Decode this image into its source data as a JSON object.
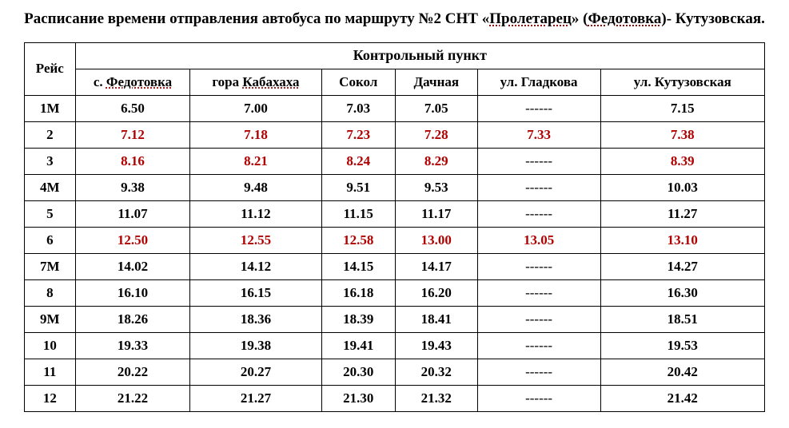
{
  "title_parts": {
    "prefix": "Расписание времени отправления автобуса по маршруту №2 СНТ «",
    "dotted1": "Пролетарец",
    "mid": "» (",
    "dotted2": "Федотовка",
    "suffix": ")- Кутузовская."
  },
  "table": {
    "section_header": "Контрольный пункт",
    "columns": {
      "reis": "Рейс",
      "fedotovka_prefix": "с. ",
      "fedotovka_dotted": "Федотовка",
      "gora_prefix": "гора ",
      "gora_dotted": "Кабахаха",
      "sokol": "Сокол",
      "dachnaya": "Дачная",
      "gladkova": "ул. Гладкова",
      "kutuzovskaya": "ул. Кутузовская"
    },
    "dash_value": "------",
    "highlight_color": "#b00000",
    "rows": [
      {
        "reis": "1М",
        "cells": [
          "6.50",
          "7.00",
          "7.03",
          "7.05",
          null,
          "7.15"
        ],
        "highlight": false
      },
      {
        "reis": "2",
        "cells": [
          "7.12",
          "7.18",
          "7.23",
          "7.28",
          "7.33",
          "7.38"
        ],
        "highlight": true
      },
      {
        "reis": "3",
        "cells": [
          "8.16",
          "8.21",
          "8.24",
          "8.29",
          null,
          "8.39"
        ],
        "highlight": true
      },
      {
        "reis": "4М",
        "cells": [
          "9.38",
          "9.48",
          "9.51",
          "9.53",
          null,
          "10.03"
        ],
        "highlight": false
      },
      {
        "reis": "5",
        "cells": [
          "11.07",
          "11.12",
          "11.15",
          "11.17",
          null,
          "11.27"
        ],
        "highlight": false
      },
      {
        "reis": "6",
        "cells": [
          "12.50",
          "12.55",
          "12.58",
          "13.00",
          "13.05",
          "13.10"
        ],
        "highlight": true
      },
      {
        "reis": "7М",
        "cells": [
          "14.02",
          "14.12",
          "14.15",
          "14.17",
          null,
          "14.27"
        ],
        "highlight": false
      },
      {
        "reis": "8",
        "cells": [
          "16.10",
          "16.15",
          "16.18",
          "16.20",
          null,
          "16.30"
        ],
        "highlight": false
      },
      {
        "reis": "9М",
        "cells": [
          "18.26",
          "18.36",
          "18.39",
          "18.41",
          null,
          "18.51"
        ],
        "highlight": false
      },
      {
        "reis": "10",
        "cells": [
          "19.33",
          "19.38",
          "19.41",
          "19.43",
          null,
          "19.53"
        ],
        "highlight": false
      },
      {
        "reis": "11",
        "cells": [
          "20.22",
          "20.27",
          "20.30",
          "20.32",
          null,
          "20.42"
        ],
        "highlight": false
      },
      {
        "reis": "12",
        "cells": [
          "21.22",
          "21.27",
          "21.30",
          "21.32",
          null,
          "21.42"
        ],
        "highlight": false
      }
    ]
  }
}
